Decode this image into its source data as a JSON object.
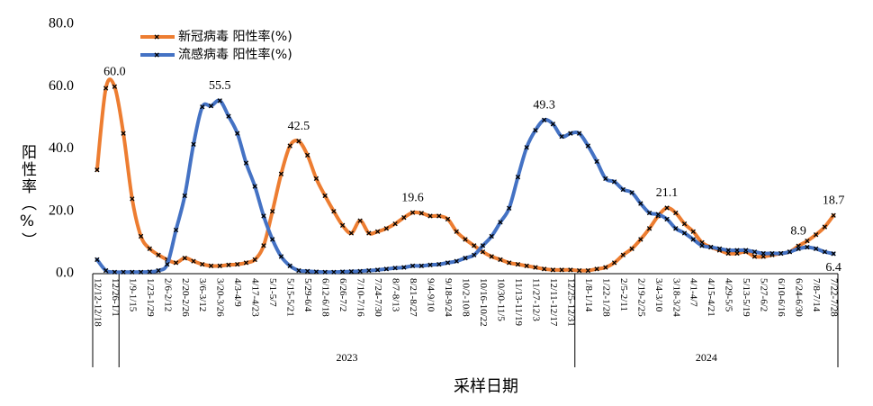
{
  "chart_data": {
    "type": "line",
    "y_label": "阳性率（%）",
    "x_label": "采样日期",
    "categories": [
      "12/12-12/18",
      null,
      "12/26-1/1",
      null,
      "1/9-1/15",
      null,
      "1/23-1/29",
      null,
      "2/6-2/12",
      null,
      "2/20-2/26",
      null,
      "3/6-3/12",
      null,
      "3/20-3/26",
      null,
      "4/3-4/9",
      null,
      "4/17-4/23",
      null,
      "5/1-5/7",
      null,
      "5/15-5/21",
      null,
      "5/29-6/4",
      null,
      "6/12-6/18",
      null,
      "6/26-7/2",
      null,
      "7/10-7/16",
      null,
      "7/24-7/30",
      null,
      "8/7-8/13",
      null,
      "8/21-8/27",
      null,
      "9/4-9/10",
      null,
      "9/18-9/24",
      null,
      "10/2-10/8",
      null,
      "10/16-10/22",
      null,
      "10/30-11/5",
      null,
      "11/13-11/19",
      null,
      "11/27-12/3",
      null,
      "12/11-12/17",
      null,
      "12/25-12/31",
      null,
      "1/8-1/14",
      null,
      "1/22-1/28",
      null,
      "2/5-2/11",
      null,
      "2/19-2/25",
      null,
      "3/4-3/10",
      null,
      "3/18-3/24",
      null,
      "4/1-4/7",
      null,
      "4/15-4/21",
      null,
      "4/29-5/5",
      null,
      "5/13-5/19",
      null,
      "5/27-6/2",
      null,
      "6/10-6/16",
      null,
      "6/24-6/30",
      null,
      "7/8-7/14",
      null,
      "7/22-7/28"
    ],
    "groups": [
      {
        "label": "2023",
        "from": 3,
        "to": 54
      },
      {
        "label": "2024",
        "from": 55,
        "to": 84
      }
    ],
    "series": [
      {
        "name": "新冠病毒 阳性率(%)",
        "color": "#ed7d31",
        "values": [
          33.3,
          59.5,
          60,
          45,
          24,
          12,
          8,
          6,
          4.5,
          3.5,
          5,
          4,
          3,
          2.5,
          2.5,
          2.8,
          3,
          3.5,
          4.5,
          9,
          20,
          32,
          41,
          42.5,
          38,
          30.5,
          25,
          20,
          15.5,
          13,
          17,
          13,
          13.5,
          14.5,
          16,
          18,
          19.6,
          19.4,
          18.5,
          18.5,
          17.5,
          13.5,
          11,
          9,
          7,
          5.5,
          4.5,
          3.5,
          3,
          2.5,
          2,
          1.5,
          1.2,
          1.2,
          1.2,
          1,
          1,
          1.5,
          2,
          3.5,
          6,
          8,
          11,
          14.5,
          18.5,
          21.1,
          19.5,
          16,
          13.5,
          10,
          8.5,
          7.5,
          6.5,
          6.5,
          7,
          5.5,
          5.5,
          6,
          6.5,
          7,
          8.9,
          10.5,
          12.5,
          15,
          18.7
        ],
        "value_labels": [
          null,
          null,
          "60.0",
          null,
          null,
          null,
          null,
          null,
          null,
          null,
          null,
          null,
          null,
          null,
          null,
          null,
          null,
          null,
          null,
          null,
          null,
          null,
          null,
          "42.5",
          null,
          null,
          null,
          null,
          null,
          null,
          null,
          null,
          null,
          null,
          null,
          null,
          "19.6",
          null,
          null,
          null,
          null,
          null,
          null,
          null,
          null,
          null,
          null,
          null,
          null,
          null,
          null,
          null,
          null,
          null,
          null,
          null,
          null,
          null,
          null,
          null,
          null,
          null,
          null,
          null,
          null,
          "21.1",
          null,
          null,
          null,
          null,
          null,
          null,
          null,
          null,
          null,
          null,
          null,
          null,
          null,
          null,
          "8.9",
          null,
          null,
          null,
          "18.7"
        ]
      },
      {
        "name": "流感病毒 阳性率(%)",
        "color": "#4472c4",
        "values": [
          4.5,
          1,
          0.5,
          0.5,
          0.5,
          0.5,
          0.6,
          1,
          3,
          14,
          25,
          41.5,
          53.5,
          53.8,
          55.5,
          50.5,
          45,
          35.5,
          28,
          18.5,
          11,
          5.5,
          2.5,
          1,
          0.8,
          0.6,
          0.5,
          0.5,
          0.6,
          0.7,
          0.8,
          1,
          1.2,
          1.5,
          1.8,
          2,
          2.5,
          2.5,
          2.8,
          3,
          3.5,
          4,
          5,
          6,
          9,
          12,
          16.5,
          21,
          31,
          40.5,
          46,
          49.3,
          48,
          44,
          45,
          45,
          41,
          36,
          30.5,
          29.5,
          27,
          26,
          22.5,
          19.5,
          19,
          17.5,
          14.5,
          13,
          11,
          9,
          8.5,
          8,
          7.5,
          7.5,
          7.5,
          7,
          6.5,
          6.5,
          6.5,
          7,
          8,
          8.5,
          8,
          7,
          6.4
        ],
        "value_labels": [
          null,
          null,
          null,
          null,
          null,
          null,
          null,
          null,
          null,
          null,
          null,
          null,
          null,
          null,
          "55.5",
          null,
          null,
          null,
          null,
          null,
          null,
          null,
          null,
          null,
          null,
          null,
          null,
          null,
          null,
          null,
          null,
          null,
          null,
          null,
          null,
          null,
          null,
          null,
          null,
          null,
          null,
          null,
          null,
          null,
          null,
          null,
          null,
          null,
          null,
          null,
          null,
          "49.3",
          null,
          null,
          null,
          null,
          null,
          null,
          null,
          null,
          null,
          null,
          null,
          null,
          null,
          null,
          null,
          null,
          null,
          null,
          null,
          null,
          null,
          null,
          null,
          null,
          null,
          null,
          null,
          null,
          null,
          null,
          null,
          null,
          "6.4"
        ]
      }
    ],
    "ylim": [
      0,
      80
    ],
    "yticks": [
      {
        "value": 0,
        "label": "0.0"
      },
      {
        "value": 20,
        "label": "20.0"
      },
      {
        "value": 40,
        "label": "40.0"
      },
      {
        "value": 60,
        "label": "60.0"
      },
      {
        "value": 80,
        "label": "80.0"
      }
    ],
    "legend": "top-left"
  }
}
